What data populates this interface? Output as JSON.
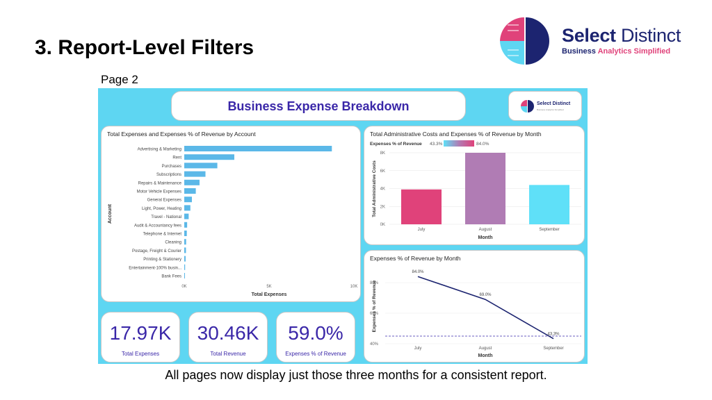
{
  "slide": {
    "title": "3. Report-Level Filters",
    "page_label": "Page 2",
    "caption": "All pages now display just those three months for a consistent report."
  },
  "brand": {
    "name_bold": "Select",
    "name_light": "Distinct",
    "tagline_1": "Business",
    "tagline_2": "Analytics Simplified",
    "colors": {
      "navy": "#1c2470",
      "pink": "#e0427a",
      "cyan": "#5ed6f2"
    }
  },
  "dashboard": {
    "title": "Business Expense Breakdown",
    "background": "#5ed6f2",
    "mini_logo": {
      "name": "Select Distinct",
      "tagline": "Business Analytics Simplified"
    },
    "kpis": [
      {
        "value": "17.97K",
        "label": "Total Expenses"
      },
      {
        "value": "30.46K",
        "label": "Total Revenue"
      },
      {
        "value": "59.0%",
        "label": "Expenses % of Revenue"
      }
    ]
  },
  "chart_data": [
    {
      "type": "bar",
      "orientation": "horizontal",
      "title": "Total Expenses and Expenses % of Revenue by Account",
      "xlabel": "Total Expenses",
      "ylabel": "Account",
      "xlim": [
        0,
        10000
      ],
      "x_ticks": [
        "0K",
        "5K",
        "10K"
      ],
      "color": "#5bb8e8",
      "categories": [
        "Advertising & Marketing",
        "Rent",
        "Purchases",
        "Subscriptions",
        "Repairs & Maintenance",
        "Motor Vehicle Expenses",
        "General Expenses",
        "Light, Power, Heating",
        "Travel - National",
        "Audit & Accountancy fees",
        "Telephone & Internet",
        "Cleaning",
        "Postage, Freight & Courier",
        "Printing & Stationery",
        "Entertainment-100% busin...",
        "Bank Fees"
      ],
      "values": [
        8700,
        2950,
        1950,
        1250,
        900,
        680,
        450,
        360,
        260,
        170,
        150,
        110,
        100,
        80,
        50,
        25
      ]
    },
    {
      "type": "bar",
      "title": "Total Administrative Costs and Expenses % of Revenue by Month",
      "legend": {
        "label": "Expenses % of Revenue",
        "min": "43.3%",
        "max": "84.0%"
      },
      "xlabel": "Month",
      "ylabel": "Total Administrative Costs",
      "ylim": [
        0,
        8000
      ],
      "y_ticks": [
        "0K",
        "2K",
        "4K",
        "6K",
        "8K"
      ],
      "categories": [
        "July",
        "August",
        "September"
      ],
      "values": [
        3900,
        8000,
        4400
      ],
      "colors": [
        "#e0427a",
        "#b07cb4",
        "#5fe0f8"
      ]
    },
    {
      "type": "line",
      "title": "Expenses % of Revenue by Month",
      "xlabel": "Month",
      "ylabel": "Expenses % of Revenue",
      "ylim": [
        40,
        90
      ],
      "y_ticks": [
        "40%",
        "60%",
        "80%"
      ],
      "categories": [
        "July",
        "August",
        "September"
      ],
      "values": [
        84.0,
        69.0,
        43.3
      ],
      "data_labels": [
        "84.0%",
        "69.0%",
        "43.3%"
      ],
      "reference_line": 45,
      "color": "#1c2470"
    }
  ]
}
